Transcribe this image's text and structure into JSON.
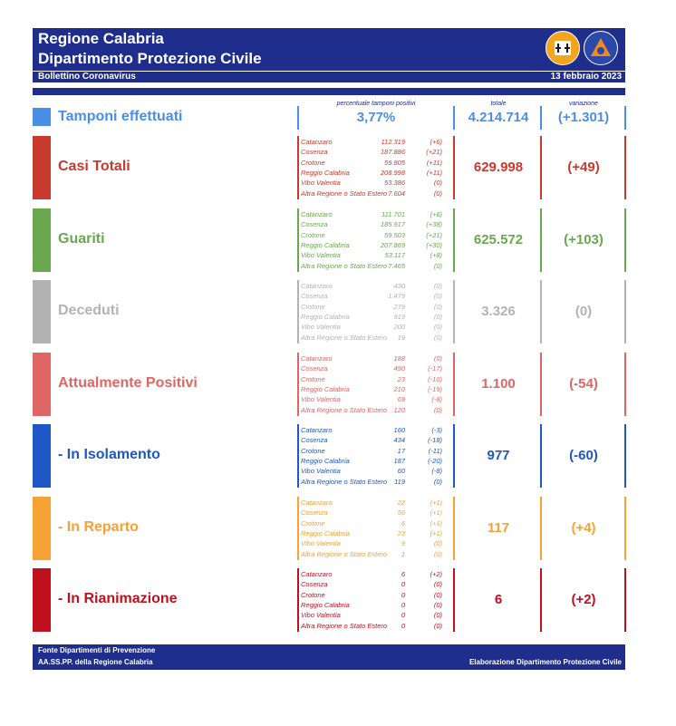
{
  "header": {
    "line1": "Regione Calabria",
    "line2": "Dipartimento Protezione Civile",
    "bulletin": "Bollettino Coronavirus",
    "date": "13 febbraio 2023"
  },
  "columns": {
    "percent_header": "percentuale tamponi positivi",
    "total_header": "totale",
    "variation_header": "variazione"
  },
  "tamponi": {
    "title": "Tamponi effettuati",
    "percent": "3,77%",
    "total": "4.214.714",
    "variation": "(+1.301)",
    "color": "#4a8fe6"
  },
  "sections": [
    {
      "title": "Casi Totali",
      "color": "#c93a2e",
      "total": "629.998",
      "variation": "(+49)",
      "regions": [
        {
          "name": "Catanzaro",
          "value": "112.319",
          "var": "(+6)"
        },
        {
          "name": "Cosenza",
          "value": "187.886",
          "var": "(+21)"
        },
        {
          "name": "Crotone",
          "value": "59.805",
          "var": "(+11)"
        },
        {
          "name": "Reggio Calabria",
          "value": "208.998",
          "var": "(+11)"
        },
        {
          "name": "Vibo Valentia",
          "value": "53.386",
          "var": "(0)"
        },
        {
          "name": "Altra Regione o Stato Estero",
          "value": "7.604",
          "var": "(0)"
        }
      ]
    },
    {
      "title": "Guariti",
      "color": "#6aa84f",
      "total": "625.572",
      "variation": "(+103)",
      "regions": [
        {
          "name": "Catanzaro",
          "value": "111.701",
          "var": "(+6)"
        },
        {
          "name": "Cosenza",
          "value": "185.917",
          "var": "(+38)"
        },
        {
          "name": "Crotone",
          "value": "59.503",
          "var": "(+21)"
        },
        {
          "name": "Reggio Calabria",
          "value": "207.869",
          "var": "(+30)"
        },
        {
          "name": "Vibo Valentia",
          "value": "53.117",
          "var": "(+8)"
        },
        {
          "name": "Altra Regione o Stato Estero",
          "value": "7.465",
          "var": "(0)"
        }
      ]
    },
    {
      "title": "Deceduti",
      "color": "#b3b3b3",
      "total": "3.326",
      "variation": "(0)",
      "regions": [
        {
          "name": "Catanzaro",
          "value": "430",
          "var": "(0)"
        },
        {
          "name": "Cosenza",
          "value": "1.479",
          "var": "(0)"
        },
        {
          "name": "Crotone",
          "value": "279",
          "var": "(0)"
        },
        {
          "name": "Reggio Calabria",
          "value": "919",
          "var": "(0)"
        },
        {
          "name": "Vibo Valentia",
          "value": "200",
          "var": "(0)"
        },
        {
          "name": "Altra Regione o Stato Estero",
          "value": "19",
          "var": "(0)"
        }
      ]
    },
    {
      "title": "Attualmente Positivi",
      "color": "#e06666",
      "total": "1.100",
      "variation": "(-54)",
      "regions": [
        {
          "name": "Catanzaro",
          "value": "188",
          "var": "(0)"
        },
        {
          "name": "Cosenza",
          "value": "490",
          "var": "(-17)"
        },
        {
          "name": "Crotone",
          "value": "23",
          "var": "(-10)"
        },
        {
          "name": "Reggio Calabria",
          "value": "210",
          "var": "(-19)"
        },
        {
          "name": "Vibo Valentia",
          "value": "69",
          "var": "(-8)"
        },
        {
          "name": "Altra Regione o Stato Estero",
          "value": "120",
          "var": "(0)"
        }
      ]
    },
    {
      "title": " - In Isolamento",
      "color": "#1f57c6",
      "total": "977",
      "variation": "(-60)",
      "regions": [
        {
          "name": "Catanzaro",
          "value": "160",
          "var": "(-3)"
        },
        {
          "name": "Cosenza",
          "value": "434",
          "var": "(-18)"
        },
        {
          "name": "Crotone",
          "value": "17",
          "var": "(-11)"
        },
        {
          "name": "Reggio Calabria",
          "value": "187",
          "var": "(-20)"
        },
        {
          "name": "Vibo Valentia",
          "value": "60",
          "var": "(-8)"
        },
        {
          "name": "Altra Regione o Stato Estero",
          "value": "119",
          "var": "(0)"
        }
      ]
    },
    {
      "title": " - In Reparto",
      "color": "#f6a234",
      "total": "117",
      "variation": "(+4)",
      "regions": [
        {
          "name": "Catanzaro",
          "value": "22",
          "var": "(+1)"
        },
        {
          "name": "Cosenza",
          "value": "56",
          "var": "(+1)"
        },
        {
          "name": "Crotone",
          "value": "6",
          "var": "(+1)"
        },
        {
          "name": "Reggio Calabria",
          "value": "23",
          "var": "(+1)"
        },
        {
          "name": "Vibo Valentia",
          "value": "9",
          "var": "(0)"
        },
        {
          "name": "Altra Regione o Stato Estero",
          "value": "1",
          "var": "(0)"
        }
      ]
    },
    {
      "title": " - In Rianimazione",
      "color": "#c0101e",
      "total": "6",
      "variation": "(+2)",
      "regions": [
        {
          "name": "Catanzaro",
          "value": "6",
          "var": "(+2)"
        },
        {
          "name": "Cosenza",
          "value": "0",
          "var": "(0)"
        },
        {
          "name": "Crotone",
          "value": "0",
          "var": "(0)"
        },
        {
          "name": "Reggio Calabria",
          "value": "0",
          "var": "(0)"
        },
        {
          "name": "Vibo Valentia",
          "value": "0",
          "var": "(0)"
        },
        {
          "name": "Altra Regione o Stato Estero",
          "value": "0",
          "var": "(0)"
        }
      ]
    }
  ],
  "footer": {
    "line1": "Fonte Dipartimenti di Prevenzione",
    "line2": "AA.SS.PP.  della Regione Calabria",
    "right": "Elaborazione Dipartimento Protezione Civile"
  }
}
